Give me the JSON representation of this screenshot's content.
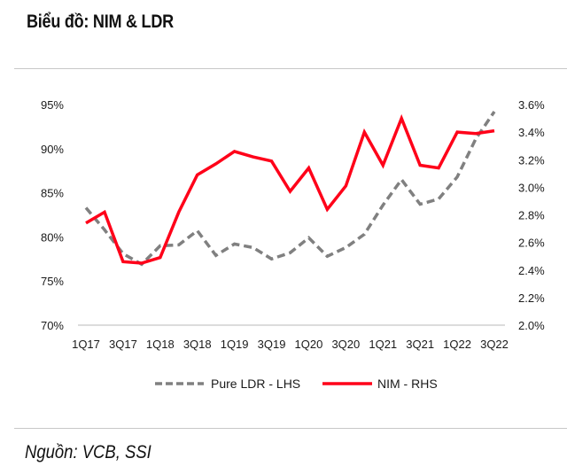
{
  "header": {
    "title": "Biểu đồ: NIM & LDR"
  },
  "footer": {
    "source": "Nguồn: VCB, SSI"
  },
  "chart_data": {
    "type": "line",
    "title": "Biểu đồ: NIM & LDR",
    "xlabel": "",
    "x": [
      "1Q17",
      "2Q17",
      "3Q17",
      "4Q17",
      "1Q18",
      "2Q18",
      "3Q18",
      "4Q18",
      "1Q19",
      "2Q19",
      "3Q19",
      "4Q19",
      "1Q20",
      "2Q20",
      "3Q20",
      "4Q20",
      "1Q21",
      "2Q21",
      "3Q21",
      "4Q21",
      "1Q22",
      "2Q22",
      "3Q22"
    ],
    "x_tick_labels": [
      "1Q17",
      "3Q17",
      "1Q18",
      "3Q18",
      "1Q19",
      "3Q19",
      "1Q20",
      "3Q20",
      "1Q21",
      "3Q21",
      "1Q22",
      "3Q22"
    ],
    "left_axis": {
      "label": "Pure LDR - LHS",
      "ylim": [
        70,
        95
      ],
      "ticks": [
        "70%",
        "75%",
        "80%",
        "85%",
        "90%",
        "95%"
      ],
      "tick_values": [
        70,
        75,
        80,
        85,
        90,
        95
      ]
    },
    "right_axis": {
      "label": "NIM - RHS",
      "ylim": [
        2.0,
        3.6
      ],
      "ticks": [
        "2.0%",
        "2.2%",
        "2.4%",
        "2.6%",
        "2.8%",
        "3.0%",
        "3.2%",
        "3.4%",
        "3.6%"
      ],
      "tick_values": [
        2.0,
        2.2,
        2.4,
        2.6,
        2.8,
        3.0,
        3.2,
        3.4,
        3.6
      ]
    },
    "series": [
      {
        "name": "Pure LDR - LHS",
        "axis": "left",
        "style": "dashed",
        "color": "#808080",
        "values": [
          83.3,
          80.8,
          78.1,
          76.9,
          79.0,
          79.1,
          80.7,
          77.9,
          79.2,
          78.8,
          77.5,
          78.2,
          79.9,
          77.8,
          78.8,
          80.3,
          83.6,
          86.5,
          83.7,
          84.3,
          86.8,
          91.1,
          94.2
        ]
      },
      {
        "name": "NIM - RHS",
        "axis": "right",
        "style": "solid",
        "color": "#ff0019",
        "values": [
          2.74,
          2.82,
          2.46,
          2.45,
          2.49,
          2.82,
          3.09,
          3.17,
          3.26,
          3.22,
          3.19,
          2.97,
          3.14,
          2.84,
          3.01,
          3.4,
          3.16,
          3.5,
          3.16,
          3.14,
          3.4,
          3.39,
          3.41
        ]
      }
    ],
    "legend": {
      "position": "bottom",
      "entries": [
        "Pure LDR - LHS",
        "NIM - RHS"
      ]
    },
    "grid": false
  }
}
